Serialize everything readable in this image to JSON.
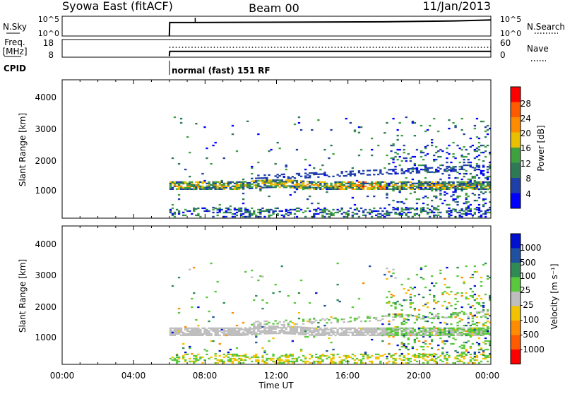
{
  "header": {
    "station": "Syowa East (fitACF)",
    "beam": "Beam 00",
    "date": "11/Jan/2013"
  },
  "colors": {
    "power_scale": [
      "#0000ff",
      "#1f3fa8",
      "#2f7a56",
      "#3fa040",
      "#e8c000",
      "#ff8c00",
      "#ff5a00",
      "#ff0000"
    ],
    "velocity_scale": [
      "#ff0000",
      "#ff5a00",
      "#ff8c00",
      "#f2c200",
      "#bebebe",
      "#5ac83c",
      "#2f8a55",
      "#2050a0",
      "#0010d0"
    ]
  },
  "mode_panel": {
    "cpid_label": "CPID",
    "cpid_text": "normal (fast) 151 RF"
  },
  "chart_data": [
    {
      "name_id": "nsky-nsearch",
      "type": "line",
      "left_label": "N.Sky",
      "right_label": "N.Search",
      "left_ticks": [
        "10^5",
        "10^0"
      ],
      "right_ticks": [
        "10^5",
        "10^0"
      ],
      "x": [
        6.0,
        6.02,
        7.4,
        7.45,
        10,
        14,
        18,
        20,
        22,
        23.5,
        24
      ],
      "nsky": [
        0.1,
        5.8,
        5.8,
        7.9,
        5.9,
        6.0,
        6.1,
        6.3,
        6.5,
        6.8,
        6.9
      ],
      "ylim": [
        0,
        7.9
      ]
    },
    {
      "name_id": "freq-nave",
      "type": "line",
      "left_label": "Freq.",
      "left_unit": "[MHz]",
      "right_label": "Nave",
      "left_ticks": [
        18,
        8
      ],
      "right_ticks": [
        60,
        0
      ],
      "x": [
        6.0,
        6.02,
        24
      ],
      "freq": [
        8.3,
        11.8,
        11.8
      ],
      "nave_level": 41
    },
    {
      "name_id": "power",
      "type": "heatmap",
      "ylabel": "Slant Range [km]",
      "yticks": [
        1000,
        2000,
        3000,
        4000
      ],
      "ylim": [
        180,
        4590
      ],
      "colorbar_label": "Power [dB]",
      "colorbar_ticks": [
        "28",
        "24",
        "20",
        "16",
        "12",
        "8",
        "4"
      ]
    },
    {
      "name_id": "velocity",
      "type": "heatmap",
      "ylabel": "Slant Range [km]",
      "yticks": [
        1000,
        2000,
        3000,
        4000
      ],
      "ylim": [
        180,
        4590
      ],
      "colorbar_label": "Velocity [m s⁻¹]",
      "colorbar_ticks": [
        "1000",
        "500",
        "100",
        "25",
        "-25",
        "-100",
        "-500",
        "-1000"
      ]
    }
  ],
  "x_axis": {
    "label": "Time UT",
    "xlim": [
      0,
      24
    ],
    "ticks": [
      "00:00",
      "04:00",
      "08:00",
      "12:00",
      "16:00",
      "20:00",
      "00:00"
    ]
  }
}
